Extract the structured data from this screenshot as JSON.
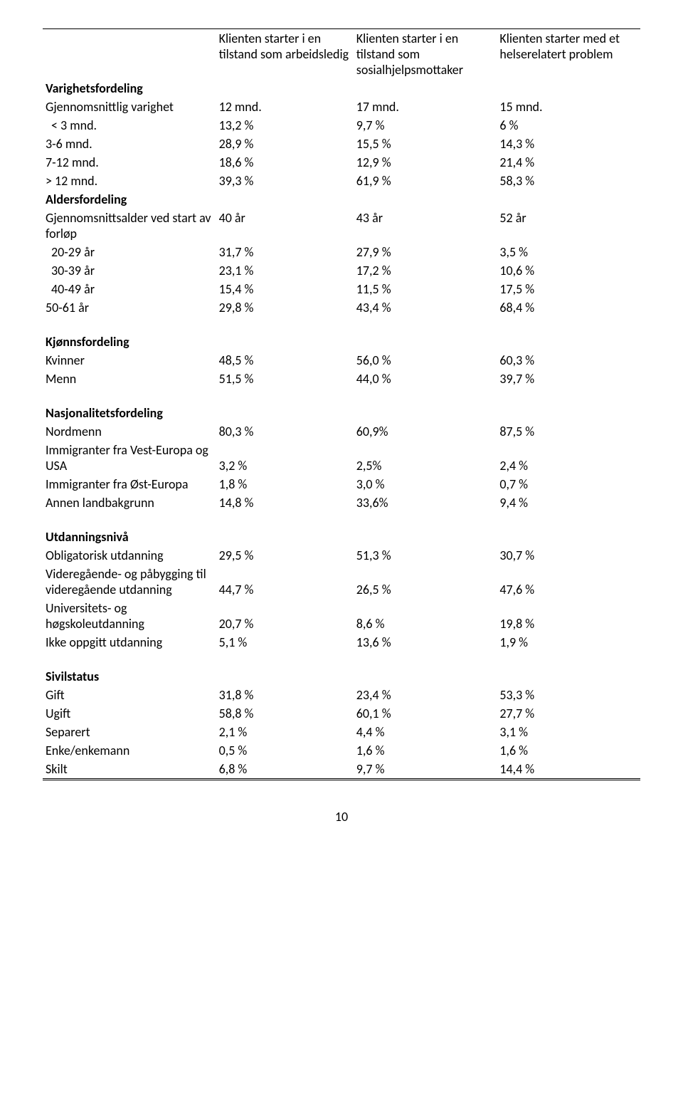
{
  "headers": {
    "c1": "Klienten starter i en tilstand som arbeidsledig",
    "c2": "Klienten starter i en tilstand som sosialhjelpsmottaker",
    "c3": "Klienten starter med et helserelatert problem"
  },
  "sections": {
    "varighet": {
      "title": "Varighetsfordeling",
      "rows": [
        {
          "label": "Gjennomsnittlig varighet",
          "v1": "12 mnd.",
          "v2": "17 mnd.",
          "v3": "15 mnd."
        },
        {
          "label": "< 3 mnd.",
          "v1": "13,2 %",
          "v2": "9,7 %",
          "v3": "6 %"
        },
        {
          "label": "3-6 mnd.",
          "v1": "28,9 %",
          "v2": "15,5 %",
          "v3": "14,3 %"
        },
        {
          "label": "7-12 mnd.",
          "v1": "18,6 %",
          "v2": "12,9 %",
          "v3": "21,4 %"
        },
        {
          "label": "> 12 mnd.",
          "v1": "39,3 %",
          "v2": "61,9 %",
          "v3": "58,3 %"
        }
      ]
    },
    "alder": {
      "title": "Aldersfordeling",
      "lead": {
        "label": "Gjennomsnittsalder ved start av forløp",
        "v1": "40 år",
        "v2": "43 år",
        "v3": "52 år"
      },
      "rows": [
        {
          "label": "20-29 år",
          "v1": "31,7 %",
          "v2": "27,9 %",
          "v3": "3,5 %",
          "indent": true
        },
        {
          "label": "30-39 år",
          "v1": "23,1 %",
          "v2": "17,2 %",
          "v3": "10,6 %",
          "indent": true
        },
        {
          "label": "40-49 år",
          "v1": "15,4 %",
          "v2": "11,5 %",
          "v3": "17,5 %",
          "indent": true
        },
        {
          "label": "50-61 år",
          "v1": "29,8 %",
          "v2": "43,4 %",
          "v3": "68,4 %"
        }
      ]
    },
    "kjonn": {
      "title": "Kjønnsfordeling",
      "rows": [
        {
          "label": "Kvinner",
          "v1": "48,5 %",
          "v2": "56,0 %",
          "v3": "60,3 %"
        },
        {
          "label": "Menn",
          "v1": "51,5 %",
          "v2": "44,0 %",
          "v3": "39,7 %"
        }
      ]
    },
    "nasjonalitet": {
      "title": "Nasjonalitetsfordeling",
      "rows": [
        {
          "label": "Nordmenn",
          "v1": "80,3 %",
          "v2": "60,9%",
          "v3": "87,5 %"
        },
        {
          "label": "Immigranter fra Vest-Europa og USA",
          "v1": "3,2 %",
          "v2": "2,5%",
          "v3": "2,4 %"
        },
        {
          "label": "Immigranter fra Øst-Europa",
          "v1": "1,8 %",
          "v2": "3,0 %",
          "v3": "0,7 %"
        },
        {
          "label": "Annen landbakgrunn",
          "v1": "14,8 %",
          "v2": "33,6%",
          "v3": "9,4 %"
        }
      ]
    },
    "utdanning": {
      "title": "Utdanningsnivå",
      "rows": [
        {
          "label": "Obligatorisk utdanning",
          "v1": "29,5 %",
          "v2": "51,3 %",
          "v3": "30,7 %"
        },
        {
          "label": "Videregående- og påbygging til videregående utdanning",
          "v1": "44,7 %",
          "v2": "26,5 %",
          "v3": "47,6 %"
        },
        {
          "label": "Universitets- og høgskoleutdanning",
          "v1": "20,7 %",
          "v2": "8,6 %",
          "v3": "19,8 %"
        },
        {
          "label": "Ikke oppgitt utdanning",
          "v1": "5,1 %",
          "v2": "13,6 %",
          "v3": "1,9 %"
        }
      ]
    },
    "sivil": {
      "title": "Sivilstatus",
      "rows": [
        {
          "label": "Gift",
          "v1": "31,8 %",
          "v2": "23,4 %",
          "v3": "53,3 %"
        },
        {
          "label": "Ugift",
          "v1": "58,8 %",
          "v2": "60,1 %",
          "v3": "27,7 %"
        },
        {
          "label": "Separert",
          "v1": "2,1 %",
          "v2": "4,4 %",
          "v3": "3,1 %"
        },
        {
          "label": "Enke/enkemann",
          "v1": "0,5 %",
          "v2": "1,6 %",
          "v3": "1,6 %"
        },
        {
          "label": "Skilt",
          "v1": "6,8 %",
          "v2": "9,7 %",
          "v3": "14,4 %"
        }
      ]
    }
  },
  "page_number": "10",
  "style": {
    "font_family": "Calibri",
    "body_font_size_pt": 11,
    "text_color": "#000000",
    "background_color": "#ffffff",
    "border_color": "#000000"
  }
}
